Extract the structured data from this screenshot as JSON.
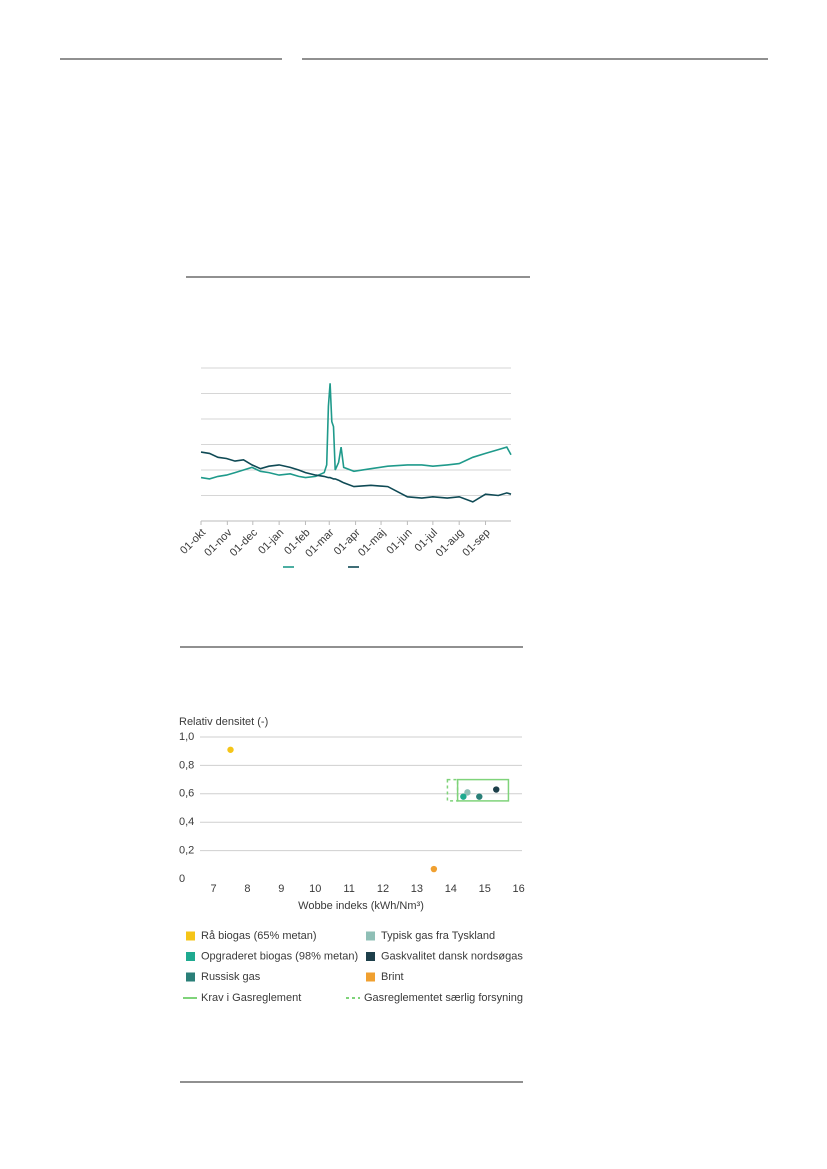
{
  "chart_data": [
    {
      "type": "line",
      "x": [
        0,
        10,
        20,
        30,
        40,
        50,
        60,
        70,
        80,
        92,
        105,
        115,
        123,
        135,
        145,
        148,
        150,
        152,
        154,
        156,
        158,
        162,
        165,
        168,
        180,
        200,
        220,
        243,
        260,
        273,
        290,
        304,
        320,
        335,
        350,
        360,
        365
      ],
      "xlim": [
        0,
        365
      ],
      "xticks": [
        {
          "value": 0,
          "label": "01-okt"
        },
        {
          "value": 31,
          "label": "01-nov"
        },
        {
          "value": 61,
          "label": "01-dec"
        },
        {
          "value": 92,
          "label": "01-jan"
        },
        {
          "value": 123,
          "label": "01-feb"
        },
        {
          "value": 151,
          "label": "01-mar"
        },
        {
          "value": 182,
          "label": "01-apr"
        },
        {
          "value": 212,
          "label": "01-maj"
        },
        {
          "value": 243,
          "label": "01-jun"
        },
        {
          "value": 273,
          "label": "01-jul"
        },
        {
          "value": 304,
          "label": "01-aug"
        },
        {
          "value": 335,
          "label": "01-sep"
        }
      ],
      "ylim": [
        0,
        6
      ],
      "yticks": [
        0,
        1,
        2,
        3,
        4,
        5,
        6
      ],
      "ytick_labels": false,
      "grid": true,
      "series": [
        {
          "color": "#1f9a8b",
          "values": [
            1.7,
            1.65,
            1.75,
            1.8,
            1.9,
            2.0,
            2.1,
            1.95,
            1.9,
            1.8,
            1.85,
            1.75,
            1.7,
            1.75,
            1.9,
            2.2,
            4.5,
            5.4,
            3.9,
            3.7,
            2.0,
            2.3,
            2.9,
            2.1,
            1.95,
            2.05,
            2.15,
            2.2,
            2.2,
            2.15,
            2.2,
            2.25,
            2.5,
            2.65,
            2.8,
            2.9,
            2.6
          ]
        },
        {
          "color": "#0f4a55",
          "values": [
            2.7,
            2.65,
            2.5,
            2.45,
            2.35,
            2.4,
            2.2,
            2.05,
            2.15,
            2.2,
            2.1,
            2.0,
            1.9,
            1.8,
            1.75,
            1.72,
            1.7,
            1.7,
            1.68,
            1.65,
            1.65,
            1.6,
            1.55,
            1.5,
            1.35,
            1.4,
            1.35,
            0.95,
            0.9,
            0.95,
            0.9,
            0.95,
            0.75,
            1.05,
            1.0,
            1.1,
            1.05
          ]
        }
      ]
    },
    {
      "type": "scatter",
      "ylabel": "Relativ densitet (-)",
      "xlabel": "Wobbe indeks (kWh/Nm³)",
      "xlim": [
        6.6,
        16.1
      ],
      "xticks": [
        7,
        8,
        9,
        10,
        11,
        12,
        13,
        14,
        15,
        16
      ],
      "ylim": [
        0,
        1.0
      ],
      "yticks": [
        0,
        {
          "value": 0.2,
          "label": "0,2"
        },
        {
          "value": 0.4,
          "label": "0,4"
        },
        {
          "value": 0.6,
          "label": "0,6"
        },
        {
          "value": 0.8,
          "label": "0,8"
        },
        {
          "value": 1.0,
          "label": "1,0"
        }
      ],
      "grid": true,
      "series": [
        {
          "name": "Rå biogas (65% metan)",
          "color": "#f5c518",
          "x": [
            7.5
          ],
          "values": [
            0.91
          ]
        },
        {
          "name": "Typisk gas fra Tyskland",
          "color": "#8fbfb6",
          "x": [
            14.49
          ],
          "values": [
            0.61
          ]
        },
        {
          "name": "Opgraderet biogas (98% metan)",
          "color": "#1faa90",
          "x": [
            14.37
          ],
          "values": [
            0.58
          ]
        },
        {
          "name": "Gaskvalitet dansk nordsøgas",
          "color": "#1d3f4a",
          "x": [
            15.34
          ],
          "values": [
            0.63
          ]
        },
        {
          "name": "Russisk gas",
          "color": "#2a7f78",
          "x": [
            14.84
          ],
          "values": [
            0.58
          ]
        },
        {
          "name": "Brint",
          "color": "#f0a030",
          "x": [
            13.5
          ],
          "values": [
            0.07
          ]
        }
      ],
      "regions": [
        {
          "name": "Krav i Gasreglement",
          "color": "#7fd37a",
          "style": "solid",
          "xlim": [
            14.2,
            15.7
          ],
          "ylim": [
            0.55,
            0.7
          ]
        },
        {
          "name": "Gasreglementet særlig forsyning",
          "color": "#7fd37a",
          "style": "dashed",
          "xlim": [
            13.9,
            14.2
          ],
          "ylim": [
            0.55,
            0.7
          ]
        }
      ]
    }
  ]
}
